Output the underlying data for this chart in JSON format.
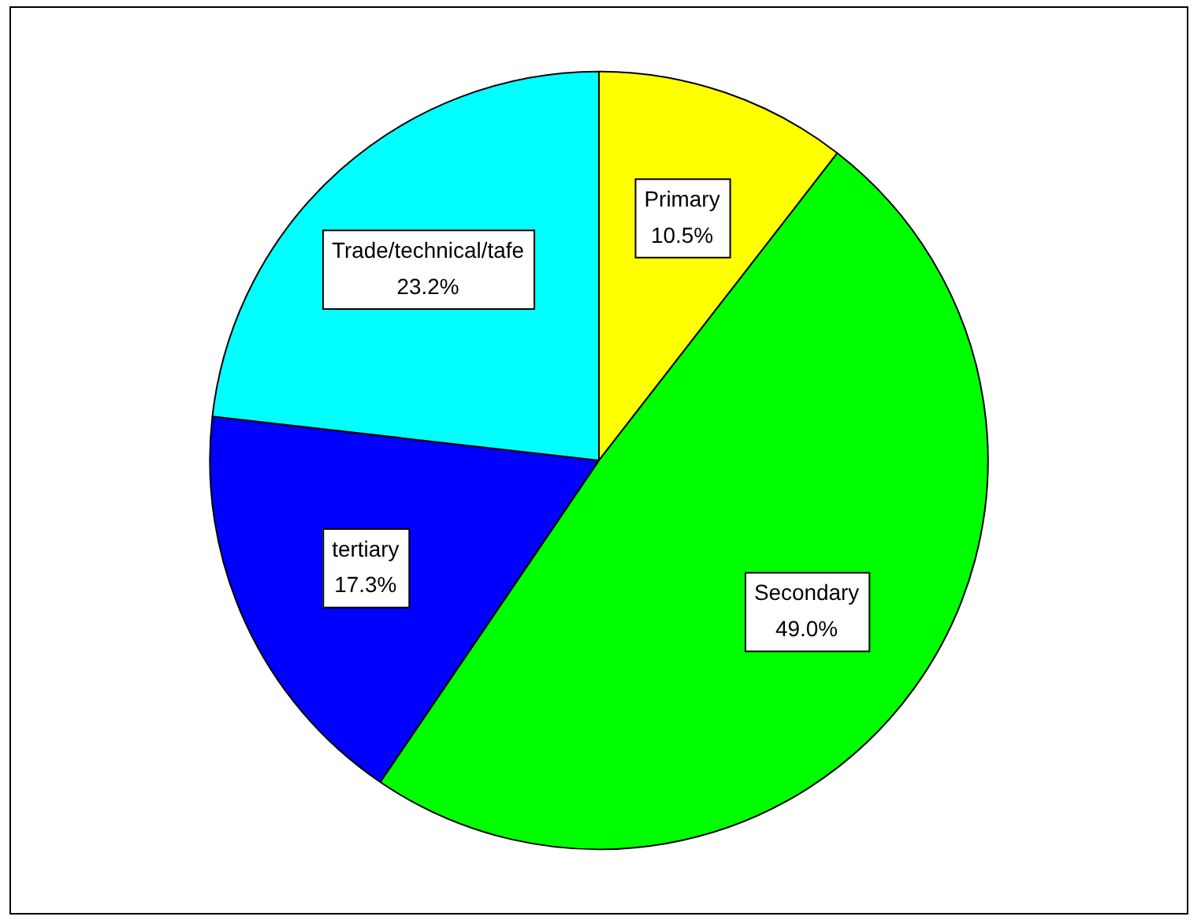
{
  "chart_data": {
    "type": "pie",
    "categories": [
      "Primary",
      "Secondary",
      "tertiary",
      "Trade/technical/tafe"
    ],
    "values": [
      10.5,
      49.0,
      17.3,
      23.2
    ],
    "colors": [
      "#ffff00",
      "#00ff00",
      "#0000ff",
      "#00ffff"
    ],
    "value_labels": [
      "10.5%",
      "49.0%",
      "17.3%",
      "23.2%"
    ],
    "legend": false
  }
}
